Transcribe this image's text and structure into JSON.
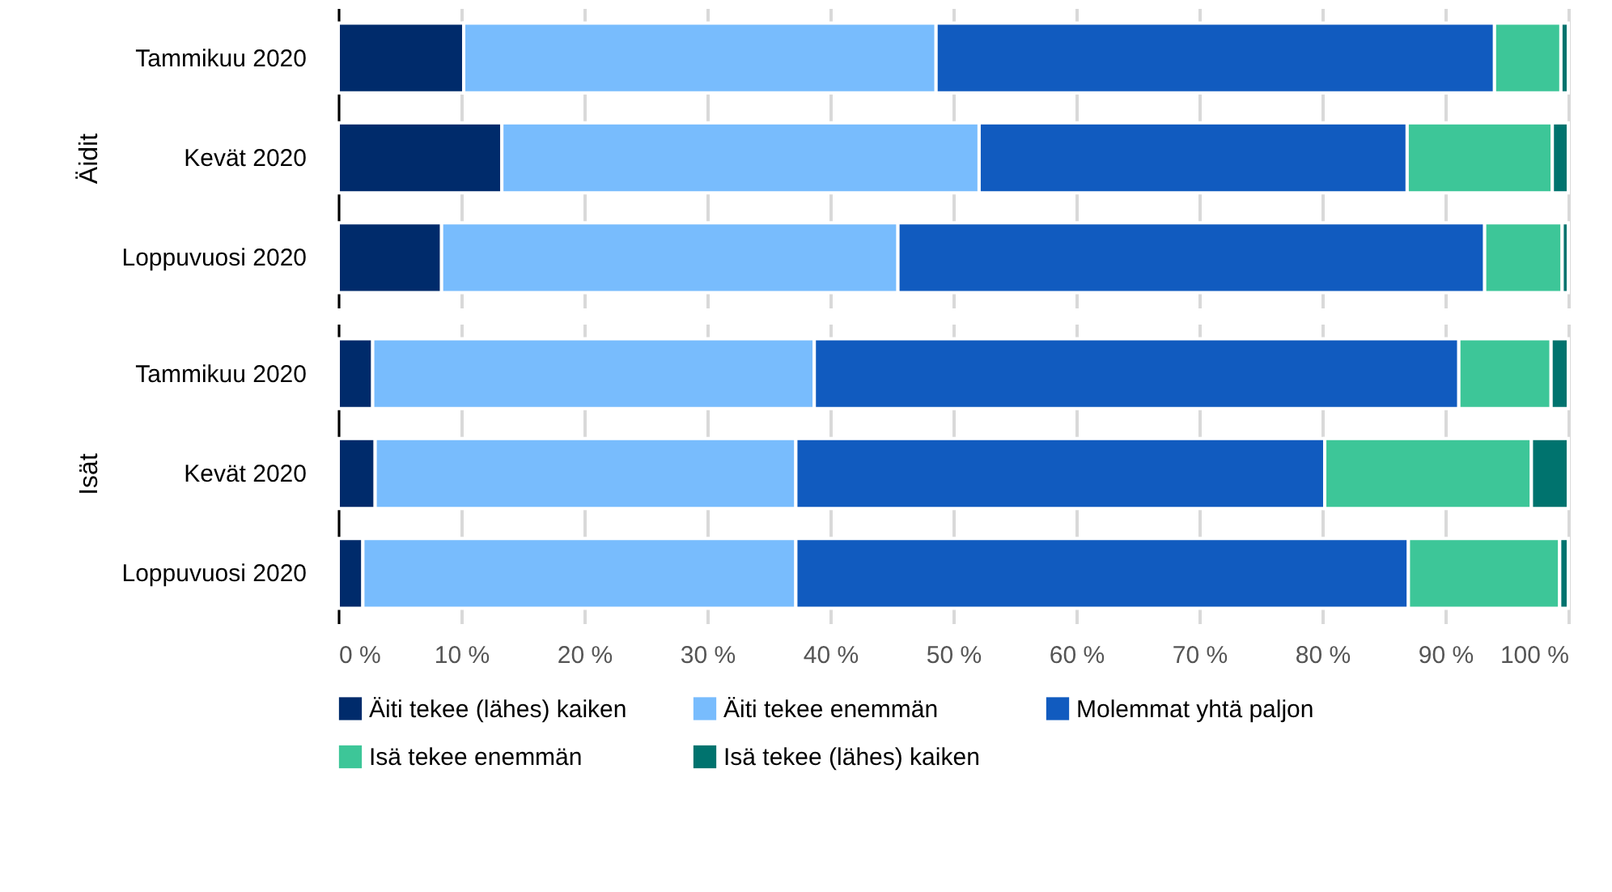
{
  "chart_data": [
    {
      "type": "bar",
      "orientation": "horizontal",
      "stacked": true,
      "ylabel": "Äidit",
      "categories": [
        "Tammikuu 2020",
        "Kevät 2020",
        "Loppuvuosi 2020"
      ],
      "series": [
        {
          "color": "#002b6b",
          "values": [
            10.2,
            13.3,
            8.4
          ]
        },
        {
          "color": "#78bcfd",
          "values": [
            38.4,
            38.8,
            37.1
          ]
        },
        {
          "color": "#115bbf",
          "values": [
            45.4,
            34.8,
            47.7
          ]
        },
        {
          "color": "#3dc698",
          "values": [
            5.4,
            11.8,
            6.3
          ]
        },
        {
          "color": "#00736e",
          "values": [
            0.6,
            1.3,
            0.5
          ]
        }
      ],
      "xlim": [
        0,
        100
      ],
      "xticks": [
        {
          "value": 0,
          "label": null
        },
        {
          "value": 10,
          "label": null
        },
        {
          "value": 20,
          "label": null
        },
        {
          "value": 30,
          "label": null
        },
        {
          "value": 40,
          "label": null
        },
        {
          "value": 50,
          "label": null
        },
        {
          "value": 60,
          "label": null
        },
        {
          "value": 70,
          "label": null
        },
        {
          "value": 80,
          "label": null
        },
        {
          "value": 90,
          "label": null
        },
        {
          "value": 100,
          "label": null
        }
      ],
      "grid": "x",
      "tick_labels": "y",
      "legend": false
    },
    {
      "type": "bar",
      "orientation": "horizontal",
      "stacked": true,
      "ylabel": "Isät",
      "categories": [
        "Tammikuu 2020",
        "Kevät 2020",
        "Loppuvuosi 2020"
      ],
      "series": [
        {
          "name": "Äiti tekee (lähes) kaiken",
          "color": "#002b6b",
          "values": [
            2.8,
            3.0,
            2.0
          ]
        },
        {
          "name": "Äiti tekee enemmän",
          "color": "#78bcfd",
          "values": [
            35.9,
            34.2,
            35.2
          ]
        },
        {
          "name": "Molemmat yhtä paljon",
          "color": "#115bbf",
          "values": [
            52.4,
            43.0,
            49.8
          ]
        },
        {
          "name": "Isä tekee enemmän",
          "color": "#3dc698",
          "values": [
            7.5,
            16.8,
            12.3
          ]
        },
        {
          "name": "Isä tekee (lähes) kaiken",
          "color": "#00736e",
          "values": [
            1.4,
            3.0,
            0.7
          ]
        }
      ],
      "xlim": [
        0,
        100
      ],
      "xticks": [
        {
          "value": 0,
          "label": "0 %"
        },
        {
          "value": 10,
          "label": "10 %"
        },
        {
          "value": 20,
          "label": "20 %"
        },
        {
          "value": 30,
          "label": "30 %"
        },
        {
          "value": 40,
          "label": "40 %"
        },
        {
          "value": 50,
          "label": "50 %"
        },
        {
          "value": 60,
          "label": "60 %"
        },
        {
          "value": 70,
          "label": "70 %"
        },
        {
          "value": 80,
          "label": "80 %"
        },
        {
          "value": 90,
          "label": "90 %"
        },
        {
          "value": 100,
          "label": "100 %"
        }
      ],
      "grid": "x",
      "legend": "bottom"
    }
  ]
}
